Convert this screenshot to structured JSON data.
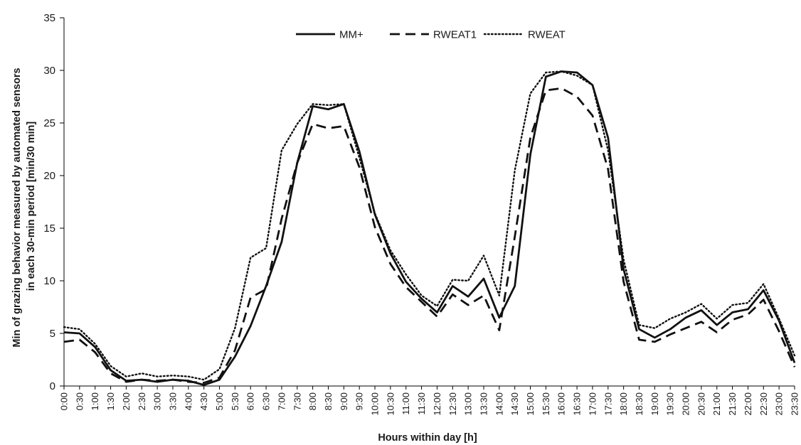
{
  "chart_data": {
    "type": "line",
    "title": "",
    "xlabel": "Hours within day [h]",
    "ylabel_lines": [
      "Min of grazing behavior measured by automated sensors",
      "in each 30-min period [min/30 min]"
    ],
    "ylim": [
      0,
      35
    ],
    "yticks": [
      "0",
      "5",
      "10",
      "15",
      "20",
      "25",
      "30",
      "35"
    ],
    "grid": false,
    "legend_position": "top-center",
    "categories": [
      "0:00",
      "0:30",
      "1:00",
      "1:30",
      "2:00",
      "2:30",
      "3:00",
      "3:30",
      "4:00",
      "4:30",
      "5:00",
      "5:30",
      "6:00",
      "6:30",
      "7:00",
      "7:30",
      "8:00",
      "8:30",
      "9:00",
      "9:30",
      "10:00",
      "10:30",
      "11:00",
      "11:30",
      "12:00",
      "12:30",
      "13:00",
      "13:30",
      "14:00",
      "14:30",
      "15:00",
      "15:30",
      "16:00",
      "16:30",
      "17:00",
      "17:30",
      "18:00",
      "18:30",
      "19:00",
      "19:30",
      "20:00",
      "20:30",
      "21:00",
      "21:30",
      "22:00",
      "22:30",
      "23:00",
      "23:30"
    ],
    "series": [
      {
        "name": "MM+",
        "style": "solid",
        "color": "#111111",
        "values": [
          5.1,
          5.0,
          3.7,
          1.5,
          0.5,
          0.6,
          0.4,
          0.6,
          0.5,
          0.1,
          0.6,
          2.8,
          5.7,
          9.5,
          13.7,
          21.2,
          26.6,
          26.3,
          26.8,
          22.3,
          16.3,
          12.6,
          9.9,
          8.3,
          7.0,
          9.5,
          8.5,
          10.2,
          6.5,
          9.5,
          22.0,
          29.4,
          29.9,
          29.8,
          28.6,
          23.6,
          11.1,
          5.4,
          4.6,
          5.4,
          6.5,
          7.2,
          5.8,
          7.0,
          7.3,
          9.1,
          6.2,
          2.2
        ]
      },
      {
        "name": "RWEAT1",
        "style": "dashed",
        "color": "#111111",
        "values": [
          4.2,
          4.4,
          3.2,
          1.2,
          0.4,
          0.6,
          0.5,
          0.6,
          0.4,
          0.3,
          0.8,
          3.4,
          8.4,
          9.2,
          15.9,
          21.2,
          24.9,
          24.5,
          24.7,
          20.8,
          15.1,
          11.6,
          9.4,
          8.0,
          6.6,
          8.7,
          7.7,
          8.6,
          5.3,
          14.2,
          23.6,
          28.1,
          28.3,
          27.5,
          25.7,
          20.6,
          9.9,
          4.4,
          4.2,
          4.9,
          5.5,
          6.1,
          5.1,
          6.3,
          6.8,
          8.2,
          5.2,
          1.8
        ]
      },
      {
        "name": "RWEAT",
        "style": "dotted",
        "color": "#111111",
        "values": [
          5.6,
          5.4,
          4.0,
          1.9,
          0.9,
          1.2,
          0.9,
          1.0,
          0.9,
          0.6,
          1.6,
          5.5,
          12.2,
          13.1,
          22.4,
          24.9,
          26.8,
          26.7,
          26.8,
          21.7,
          16.4,
          12.9,
          10.6,
          8.6,
          7.6,
          10.1,
          10.0,
          12.4,
          8.6,
          20.5,
          27.8,
          29.8,
          29.9,
          29.5,
          28.6,
          22.4,
          12.0,
          5.8,
          5.5,
          6.4,
          7.0,
          7.8,
          6.4,
          7.7,
          7.9,
          9.7,
          6.4,
          2.9
        ]
      }
    ]
  }
}
